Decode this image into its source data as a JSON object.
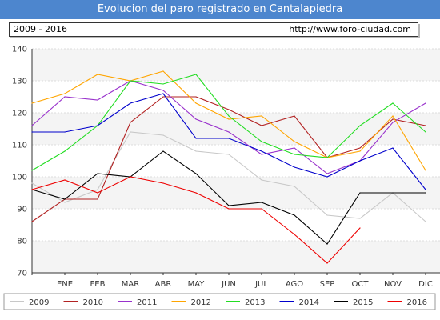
{
  "title": "Evolucion del paro registrado en Cantalapiedra",
  "period": "2009 - 2016",
  "site": "http://www.foro-ciudad.com",
  "chart_data": {
    "type": "line",
    "title": "Evolucion del paro registrado en Cantalapiedra",
    "x": [
      "",
      "ENE",
      "FEB",
      "MAR",
      "ABR",
      "MAY",
      "JUN",
      "JUL",
      "AGO",
      "SEP",
      "OCT",
      "NOV",
      "DIC"
    ],
    "ylim": [
      70,
      140
    ],
    "yticks": [
      70,
      80,
      90,
      100,
      110,
      120,
      130,
      140
    ],
    "grid": "horizontal",
    "legend_position": "bottom",
    "series": [
      {
        "name": "2009",
        "color": "#c8c8c8",
        "values": [
          98,
          92,
          96,
          114,
          113,
          108,
          107,
          99,
          97,
          88,
          87,
          95,
          86
        ]
      },
      {
        "name": "2010",
        "color": "#b22222",
        "values": [
          86,
          93,
          93,
          117,
          125,
          125,
          121,
          116,
          119,
          106,
          109,
          118,
          116
        ]
      },
      {
        "name": "2011",
        "color": "#9932cc",
        "values": [
          116,
          125,
          124,
          130,
          127,
          118,
          114,
          107,
          109,
          101,
          105,
          117,
          123
        ]
      },
      {
        "name": "2012",
        "color": "#ffa500",
        "values": [
          123,
          126,
          132,
          130,
          133,
          123,
          118,
          119,
          111,
          106,
          108,
          119,
          102
        ]
      },
      {
        "name": "2013",
        "color": "#22dd22",
        "values": [
          102,
          108,
          116,
          130,
          129,
          132,
          119,
          111,
          107,
          106,
          116,
          123,
          114
        ]
      },
      {
        "name": "2014",
        "color": "#0000cc",
        "values": [
          114,
          114,
          116,
          123,
          126,
          112,
          112,
          108,
          103,
          100,
          105,
          109,
          96
        ]
      },
      {
        "name": "2015",
        "color": "#000000",
        "values": [
          96,
          93,
          101,
          100,
          108,
          101,
          91,
          92,
          88,
          79,
          95,
          95,
          95
        ]
      },
      {
        "name": "2016",
        "color": "#ee0000",
        "values": [
          96,
          99,
          95,
          100,
          98,
          95,
          90,
          90,
          82,
          73,
          84,
          null,
          null
        ]
      }
    ]
  }
}
